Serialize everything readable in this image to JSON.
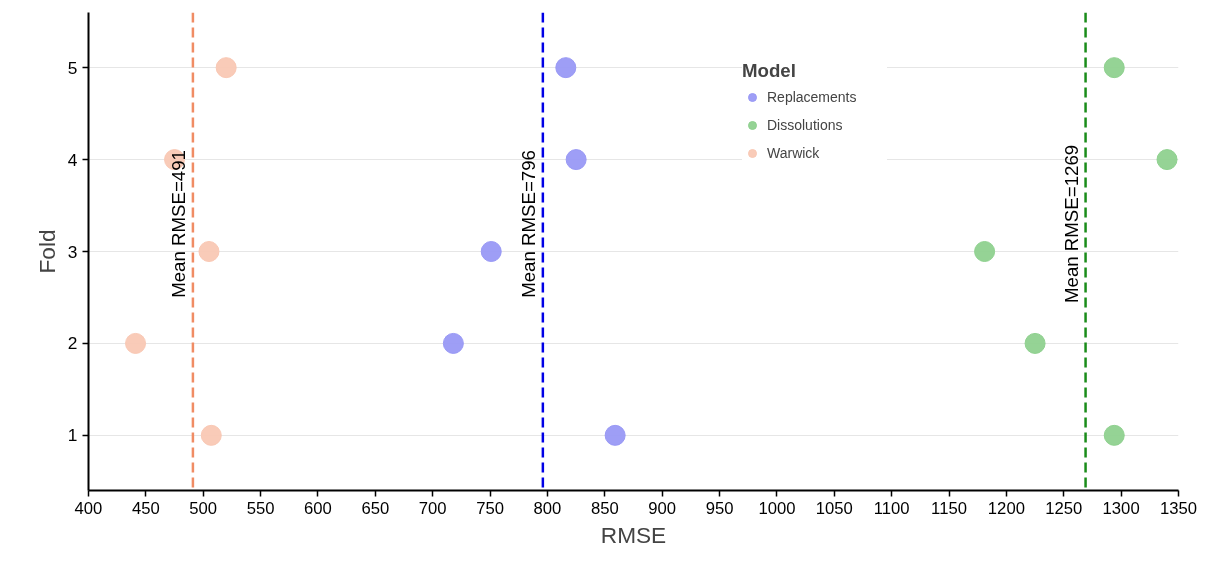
{
  "chart_data": {
    "type": "scatter",
    "xlabel": "RMSE",
    "ylabel": "Fold",
    "legend_title": "Model",
    "xlim": [
      400,
      1350
    ],
    "xticks": [
      400,
      450,
      500,
      550,
      600,
      650,
      700,
      750,
      800,
      850,
      900,
      950,
      1000,
      1050,
      1100,
      1150,
      1200,
      1250,
      1300,
      1350
    ],
    "ylim": [
      0.4,
      5.6
    ],
    "yticks": [
      1,
      2,
      3,
      4,
      5
    ],
    "series": [
      {
        "name": "Replacements",
        "color": "#9999f5",
        "x": [
          859,
          718,
          751,
          825,
          816
        ],
        "values": [
          1,
          2,
          3,
          4,
          5
        ]
      },
      {
        "name": "Dissolutions",
        "color": "#8fd18f",
        "x": [
          1294,
          1225,
          1181,
          1340,
          1294
        ],
        "values": [
          1,
          2,
          3,
          4,
          5
        ]
      },
      {
        "name": "Warwick",
        "color": "#f9c8b4",
        "x": [
          507,
          441,
          505,
          475,
          520
        ],
        "values": [
          1,
          2,
          3,
          4,
          5
        ]
      }
    ],
    "ref_lines": [
      {
        "axis": "x",
        "value": 491,
        "label": "Mean RMSE=491",
        "color": "#f08c64",
        "line_style": "dashed"
      },
      {
        "axis": "x",
        "value": 796,
        "label": "Mean RMSE=796",
        "color": "#0000e6",
        "line_style": "dashed"
      },
      {
        "axis": "x",
        "value": 1269,
        "label": "Mean RMSE=1269",
        "color": "#1a8c1a",
        "line_style": "dashed"
      }
    ],
    "grid": "y",
    "legend": "top right",
    "marker": "circle"
  }
}
